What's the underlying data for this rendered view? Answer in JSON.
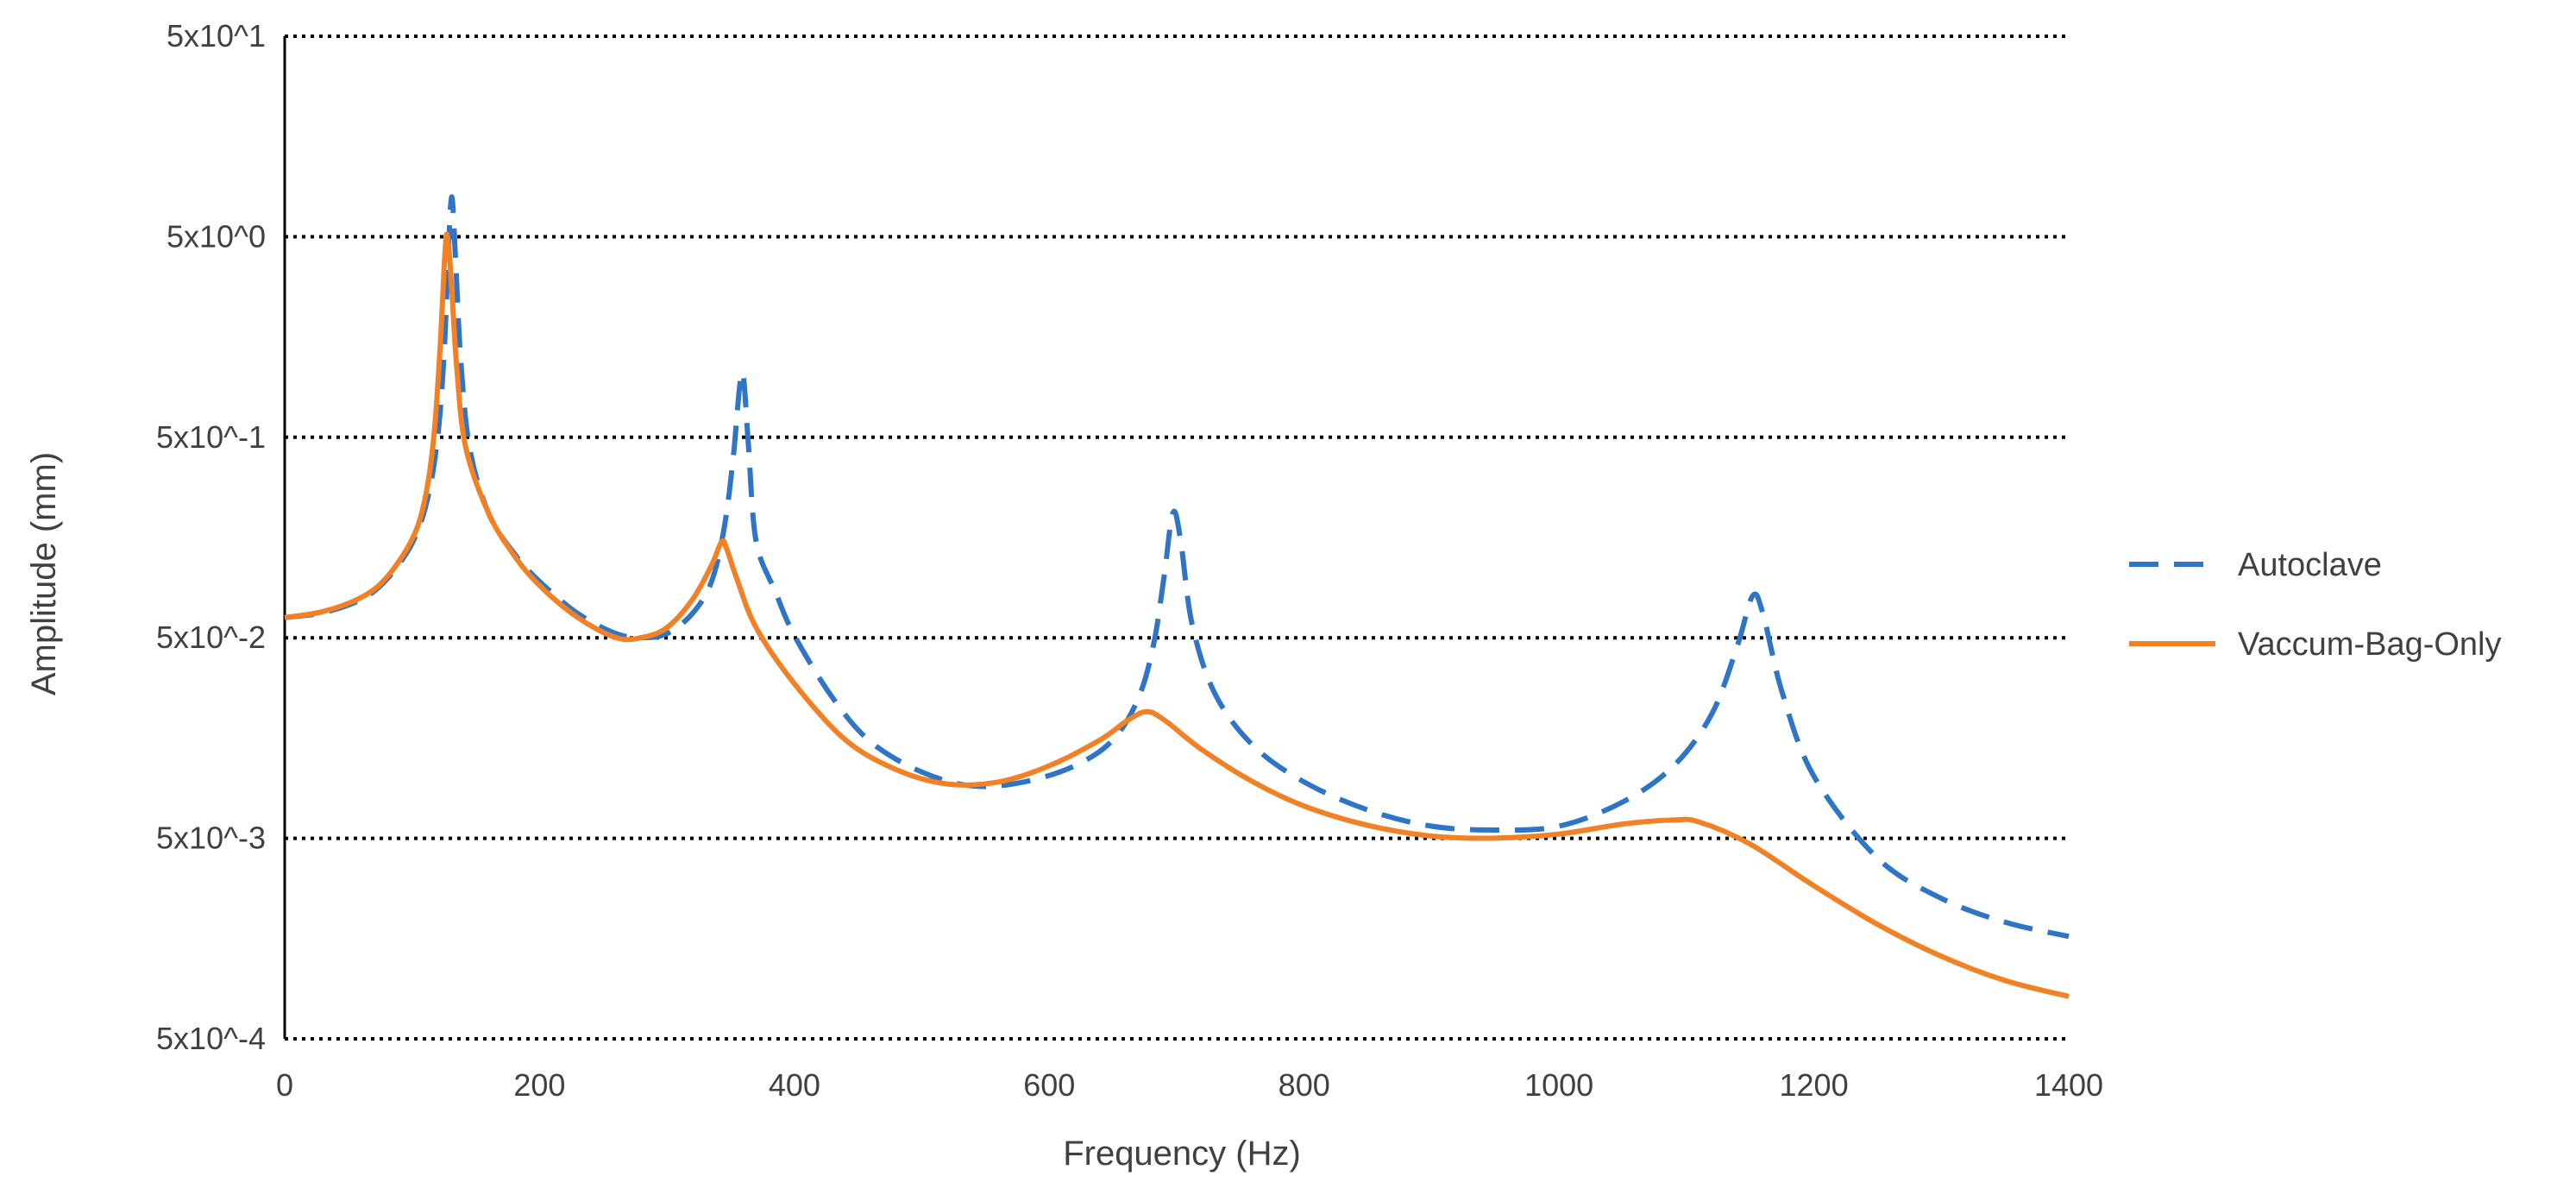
{
  "chart_data": {
    "type": "line",
    "title": "",
    "xlabel": "Frequency (Hz)",
    "ylabel": "Amplitude (mm)",
    "x_scale": "linear",
    "y_scale": "log",
    "xlim": [
      0,
      1400
    ],
    "ylim": [
      0.0005,
      50
    ],
    "x_ticks": [
      0,
      200,
      400,
      600,
      800,
      1000,
      1200,
      1400
    ],
    "x_tick_labels": [
      "0",
      "200",
      "400",
      "600",
      "800",
      "1000",
      "1200",
      "1400"
    ],
    "y_ticks": [
      0.0005,
      0.005,
      0.05,
      0.5,
      5,
      50
    ],
    "y_tick_labels": [
      "5x10^-4",
      "5x10^-3",
      "5x10^-2",
      "5x10^-1",
      "5x10^0",
      "5x10^1"
    ],
    "grid": {
      "horizontal": true,
      "style": "dotted",
      "color": "#000000"
    },
    "legend_position": "right",
    "series": [
      {
        "name": "Autoclave",
        "color": "#2E75C8",
        "line_style": "dashed",
        "points": [
          [
            0,
            0.0631
          ],
          [
            30,
            0.0667
          ],
          [
            60,
            0.0776
          ],
          [
            80,
            0.0977
          ],
          [
            100,
            0.148
          ],
          [
            112,
            0.245
          ],
          [
            120,
            0.5
          ],
          [
            125,
            1.26
          ],
          [
            128,
            3.55
          ],
          [
            131,
            7.9
          ],
          [
            134,
            3.98
          ],
          [
            138,
            1.26
          ],
          [
            145,
            0.447
          ],
          [
            160,
            0.209
          ],
          [
            180,
            0.132
          ],
          [
            200,
            0.0955
          ],
          [
            230,
            0.0661
          ],
          [
            260,
            0.0525
          ],
          [
            280,
            0.0501
          ],
          [
            300,
            0.0525
          ],
          [
            320,
            0.0661
          ],
          [
            335,
            0.0955
          ],
          [
            345,
            0.178
          ],
          [
            352,
            0.398
          ],
          [
            357,
            0.89
          ],
          [
            360,
            1.0
          ],
          [
            364,
            0.447
          ],
          [
            370,
            0.151
          ],
          [
            385,
            0.0851
          ],
          [
            400,
            0.0513
          ],
          [
            430,
            0.0251
          ],
          [
            460,
            0.0151
          ],
          [
            500,
            0.0107
          ],
          [
            540,
            0.00912
          ],
          [
            580,
            0.00955
          ],
          [
            620,
            0.0115
          ],
          [
            650,
            0.0155
          ],
          [
            670,
            0.0251
          ],
          [
            682,
            0.0468
          ],
          [
            690,
            0.1
          ],
          [
            697,
            0.21
          ],
          [
            703,
            0.155
          ],
          [
            712,
            0.0589
          ],
          [
            730,
            0.0263
          ],
          [
            760,
            0.0145
          ],
          [
            800,
            0.00955
          ],
          [
            850,
            0.00692
          ],
          [
            900,
            0.00575
          ],
          [
            950,
            0.0055
          ],
          [
            1000,
            0.00575
          ],
          [
            1050,
            0.00759
          ],
          [
            1090,
            0.0115
          ],
          [
            1120,
            0.0209
          ],
          [
            1140,
            0.0457
          ],
          [
            1152,
            0.081
          ],
          [
            1160,
            0.0661
          ],
          [
            1175,
            0.0269
          ],
          [
            1200,
            0.0102
          ],
          [
            1250,
            0.00398
          ],
          [
            1300,
            0.00251
          ],
          [
            1350,
            0.00191
          ],
          [
            1400,
            0.00162
          ]
        ]
      },
      {
        "name": "Vaccum-Bag-Only",
        "color": "#F28025",
        "line_style": "solid",
        "points": [
          [
            0,
            0.0631
          ],
          [
            30,
            0.0676
          ],
          [
            60,
            0.0794
          ],
          [
            80,
            0.1
          ],
          [
            100,
            0.155
          ],
          [
            110,
            0.245
          ],
          [
            117,
            0.5
          ],
          [
            122,
            1.41
          ],
          [
            126,
            4.37
          ],
          [
            128,
            4.9
          ],
          [
            131,
            2.82
          ],
          [
            135,
            1.12
          ],
          [
            142,
            0.447
          ],
          [
            160,
            0.209
          ],
          [
            180,
            0.129
          ],
          [
            200,
            0.0912
          ],
          [
            230,
            0.0631
          ],
          [
            260,
            0.0501
          ],
          [
            280,
            0.0501
          ],
          [
            300,
            0.0562
          ],
          [
            320,
            0.0776
          ],
          [
            335,
            0.115
          ],
          [
            343,
            0.151
          ],
          [
            347,
            0.138
          ],
          [
            355,
            0.0977
          ],
          [
            370,
            0.0562
          ],
          [
            400,
            0.0295
          ],
          [
            440,
            0.0155
          ],
          [
            480,
            0.011
          ],
          [
            520,
            0.00933
          ],
          [
            560,
            0.00955
          ],
          [
            600,
            0.0115
          ],
          [
            640,
            0.0155
          ],
          [
            660,
            0.0191
          ],
          [
            676,
            0.0214
          ],
          [
            690,
            0.0195
          ],
          [
            720,
            0.0138
          ],
          [
            760,
            0.00955
          ],
          [
            800,
            0.00724
          ],
          [
            850,
            0.0058
          ],
          [
            900,
            0.00513
          ],
          [
            950,
            0.00501
          ],
          [
            1000,
            0.00525
          ],
          [
            1050,
            0.00589
          ],
          [
            1090,
            0.00617
          ],
          [
            1110,
            0.00603
          ],
          [
            1150,
            0.00468
          ],
          [
            1200,
            0.0029
          ],
          [
            1250,
            0.00186
          ],
          [
            1300,
            0.00129
          ],
          [
            1350,
            0.000977
          ],
          [
            1400,
            0.000813
          ]
        ]
      }
    ]
  }
}
